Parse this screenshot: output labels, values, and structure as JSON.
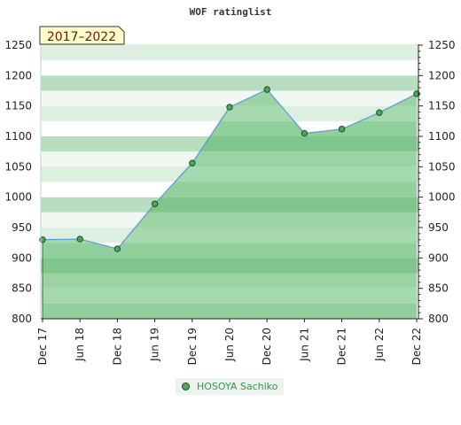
{
  "chart_data": {
    "type": "area",
    "title": "WOF ratinglist",
    "badge": "2017–2022",
    "x_ticks": [
      "Dec 17",
      "Jun 18",
      "Dec 18",
      "Jun 19",
      "Dec 19",
      "Jun 20",
      "Dec 20",
      "Jun 21",
      "Dec 21",
      "Jun 22",
      "Dec 22"
    ],
    "y_ticks": [
      "800",
      "850",
      "900",
      "950",
      "1000",
      "1050",
      "1100",
      "1150",
      "1200",
      "1250"
    ],
    "ylim": [
      800,
      1250
    ],
    "series": [
      {
        "name": "HOSOYA Sachiko",
        "color": "#4aaa55",
        "values": [
          930,
          931,
          915,
          989,
          1056,
          1148,
          1177,
          1105,
          1112,
          1139,
          1170
        ]
      }
    ],
    "legend_position": "bottom-center"
  }
}
